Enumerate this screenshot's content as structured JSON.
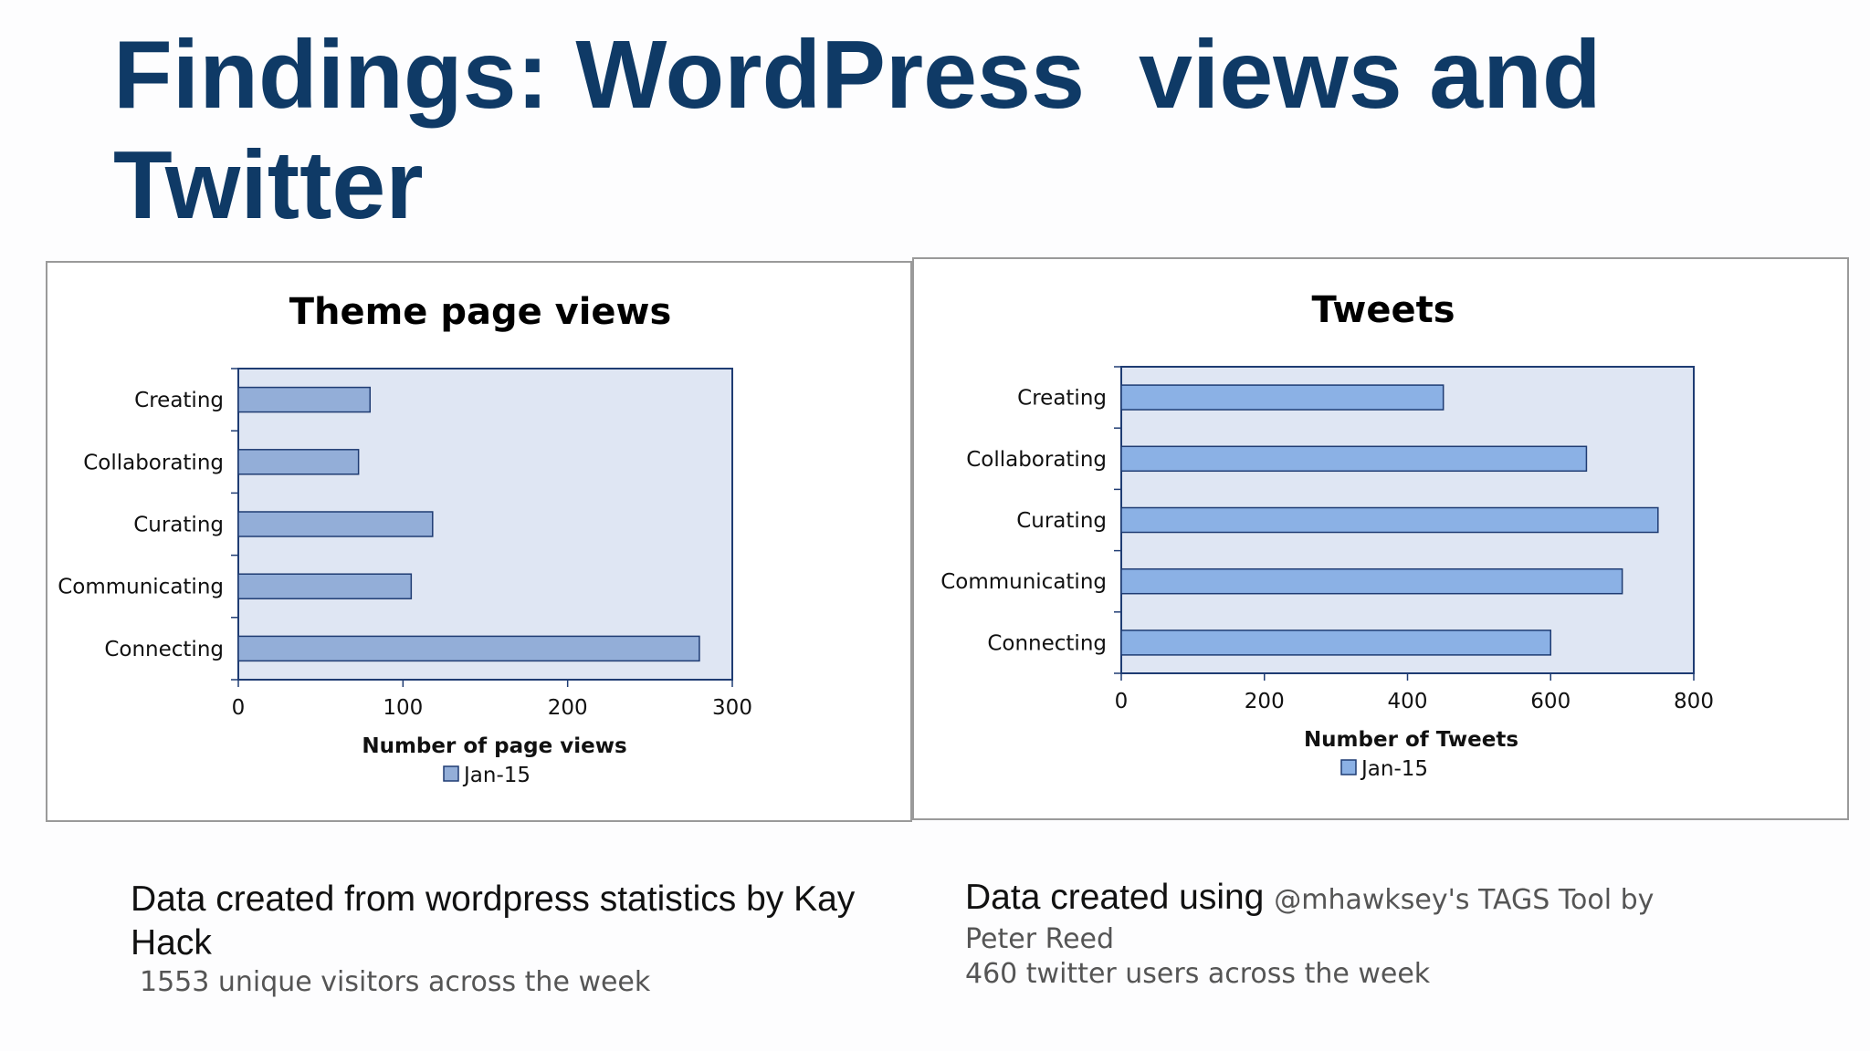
{
  "slide": {
    "title": "Findings: WordPress  views and Twitter"
  },
  "captions": {
    "left": {
      "main": "Data created from wordpress statistics by Kay Hack",
      "note": "1553 unique visitors  across the week"
    },
    "right": {
      "main": "Data created using",
      "inline_note": "@mhawksey's TAGS Tool by",
      "line2": "Peter Reed",
      "line3": "460 twitter users across the week"
    }
  },
  "colors": {
    "title": "#0f3a66",
    "plot_bg": "#dfe6f3",
    "bar_fill_left": "#93aed8",
    "bar_fill_right": "#8bb1e5",
    "bar_stroke": "#1f3c73",
    "frame": "#1f3c73"
  },
  "chart_data": [
    {
      "type": "bar",
      "orientation": "horizontal",
      "title": "Theme page views",
      "categories": [
        "Creating",
        "Collaborating",
        "Curating",
        "Communicating",
        "Connecting"
      ],
      "series": [
        {
          "name": "Jan-15",
          "values": [
            80,
            73,
            118,
            105,
            280
          ]
        }
      ],
      "xlabel": "Number of page views",
      "ylabel": "",
      "xlim": [
        0,
        300
      ],
      "xticks": [
        "0",
        "100",
        "200",
        "300"
      ],
      "grid": false,
      "legend": "bottom"
    },
    {
      "type": "bar",
      "orientation": "horizontal",
      "title": "Tweets",
      "categories": [
        "Creating",
        "Collaborating",
        "Curating",
        "Communicating",
        "Connecting"
      ],
      "series": [
        {
          "name": "Jan-15",
          "values": [
            450,
            650,
            750,
            700,
            600
          ]
        }
      ],
      "xlabel": "Number of Tweets",
      "ylabel": "",
      "xlim": [
        0,
        800
      ],
      "xticks": [
        "0",
        "200",
        "400",
        "600",
        "800"
      ],
      "grid": false,
      "legend": "bottom"
    }
  ]
}
